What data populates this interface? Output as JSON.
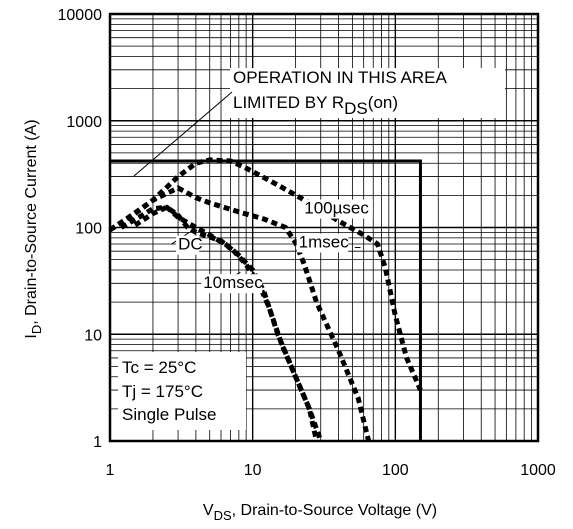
{
  "chart_data": {
    "type": "line",
    "x_scale": "log",
    "y_scale": "log",
    "xlim": [
      1,
      1000
    ],
    "ylim": [
      1,
      10000
    ],
    "grid": true,
    "x_ticks": [
      1,
      10,
      100,
      1000
    ],
    "y_ticks": [
      1,
      10,
      100,
      1000,
      10000
    ],
    "x_tick_labels": [
      "1",
      "10",
      "100",
      "1000"
    ],
    "y_tick_labels": [
      "1",
      "10",
      "100",
      "1000",
      "10000"
    ],
    "xlabel": {
      "main": "V",
      "sub": "DS",
      "rest": ", Drain-to-Source Voltage (V)"
    },
    "ylabel": {
      "main": "I",
      "sub": "D",
      "rest": ",  Drain-to-Source Current (A)"
    },
    "boundary": {
      "current_limit": 420,
      "voltage_limit": 150
    },
    "series": [
      {
        "name": "100µsec",
        "points": [
          [
            1,
            95
          ],
          [
            1.3,
            120
          ],
          [
            2,
            180
          ],
          [
            3,
            300
          ],
          [
            4,
            400
          ],
          [
            5,
            430
          ],
          [
            7,
            420
          ],
          [
            9,
            360
          ],
          [
            15,
            250
          ],
          [
            25,
            170
          ],
          [
            40,
            115
          ],
          [
            60,
            85
          ],
          [
            75,
            70
          ],
          [
            85,
            42
          ],
          [
            100,
            15
          ],
          [
            120,
            6
          ],
          [
            150,
            3
          ]
        ]
      },
      {
        "name": "1msec",
        "points": [
          [
            1,
            95
          ],
          [
            1.5,
            135
          ],
          [
            2,
            180
          ],
          [
            3,
            235
          ],
          [
            4,
            190
          ],
          [
            5,
            170
          ],
          [
            8,
            140
          ],
          [
            12,
            120
          ],
          [
            17,
            100
          ],
          [
            20,
            72
          ],
          [
            23,
            45
          ],
          [
            28,
            20
          ],
          [
            40,
            7
          ],
          [
            55,
            2.5
          ],
          [
            65,
            1
          ]
        ]
      },
      {
        "name": "10msec",
        "points": [
          [
            1.5,
            105
          ],
          [
            2,
            135
          ],
          [
            2.5,
            155
          ],
          [
            3,
            130
          ],
          [
            3.5,
            100
          ],
          [
            4,
            90
          ],
          [
            6,
            75
          ],
          [
            8,
            55
          ],
          [
            10,
            40
          ],
          [
            12,
            25
          ],
          [
            15,
            10
          ],
          [
            20,
            4
          ],
          [
            25,
            2
          ],
          [
            30,
            1
          ]
        ]
      },
      {
        "name": "DC",
        "points": [
          [
            1.2,
            100
          ],
          [
            1.6,
            125
          ],
          [
            2,
            150
          ],
          [
            2.5,
            155
          ],
          [
            3,
            125
          ],
          [
            4,
            100
          ],
          [
            5,
            85
          ],
          [
            7,
            65
          ],
          [
            9,
            45
          ],
          [
            11,
            30
          ],
          [
            13,
            18
          ],
          [
            16,
            8
          ],
          [
            20,
            4
          ],
          [
            25,
            2
          ],
          [
            28,
            1
          ]
        ]
      }
    ],
    "series_labels": [
      {
        "text": "100µsec",
        "x": 23,
        "y": 135,
        "pointer": null
      },
      {
        "text": "1msec",
        "x": 21,
        "y": 65,
        "pointer": [
          [
            52,
            65
          ],
          [
            57,
            65
          ]
        ]
      },
      {
        "text": "DC",
        "x": 3,
        "y": 62,
        "pointer": [
          [
            2.7,
            70
          ],
          [
            3.6,
            90
          ]
        ]
      },
      {
        "text": "10msec",
        "x": 4.5,
        "y": 27,
        "pointer": [
          [
            6.5,
            32
          ],
          [
            8.2,
            38
          ]
        ]
      }
    ],
    "annotations": {
      "operation_line1": "OPERATION IN THIS AREA",
      "operation_line2_prefix": "LIMITED BY R",
      "operation_line2_sub": "DS",
      "operation_line2_suffix": "(on)",
      "conditions": [
        "Tc = 25°C",
        "Tj = 175°C",
        "Single Pulse"
      ]
    }
  }
}
